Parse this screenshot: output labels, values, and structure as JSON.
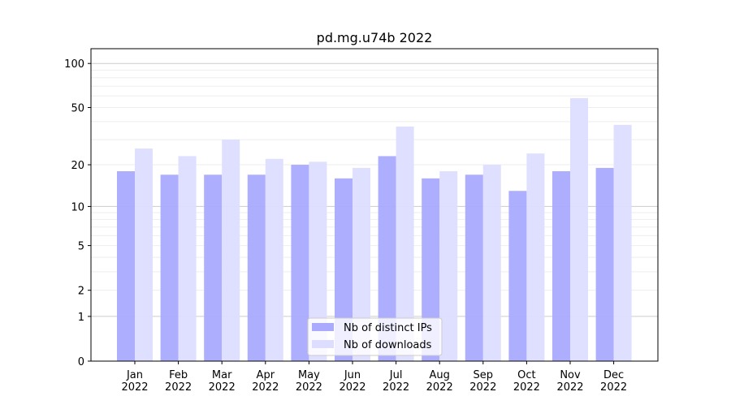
{
  "chart_data": {
    "type": "bar",
    "title": "pd.mg.u74b 2022",
    "xlabel": "",
    "ylabel": "",
    "yscale": "log(1+y)",
    "ylim": [
      0,
      126
    ],
    "yticks": [
      0,
      1,
      2,
      5,
      10,
      20,
      50,
      100
    ],
    "grid": true,
    "legend_position": "bottom-center",
    "categories": [
      "Jan\n2022",
      "Feb\n2022",
      "Mar\n2022",
      "Apr\n2022",
      "May\n2022",
      "Jun\n2022",
      "Jul\n2022",
      "Aug\n2022",
      "Sep\n2022",
      "Oct\n2022",
      "Nov\n2022",
      "Dec\n2022"
    ],
    "series": [
      {
        "name": "Nb of distinct IPs",
        "color": "#aaaaff",
        "values": [
          18,
          17,
          17,
          17,
          20,
          16,
          23,
          16,
          17,
          13,
          18,
          19
        ]
      },
      {
        "name": "Nb of downloads",
        "color": "#ddddff",
        "values": [
          26,
          23,
          30,
          22,
          21,
          19,
          37,
          18,
          20,
          24,
          58,
          38
        ]
      }
    ]
  }
}
